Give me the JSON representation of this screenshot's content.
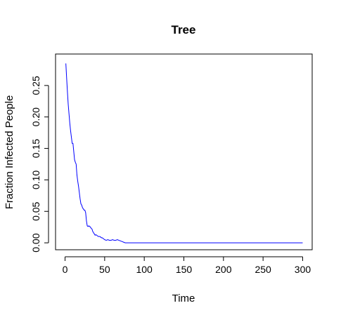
{
  "chart_data": {
    "type": "line",
    "title": "Tree",
    "xlabel": "Time",
    "ylabel": "Fraction Infected People",
    "xlim": [
      -12,
      312
    ],
    "ylim": [
      -0.011,
      0.3
    ],
    "xticks": [
      0,
      50,
      100,
      150,
      200,
      250,
      300
    ],
    "yticks": [
      0.0,
      0.05,
      0.1,
      0.15,
      0.2,
      0.25
    ],
    "xtick_labels": [
      "0",
      "50",
      "100",
      "150",
      "200",
      "250",
      "300"
    ],
    "ytick_labels": [
      "0.00",
      "0.05",
      "0.10",
      "0.15",
      "0.20",
      "0.25"
    ],
    "grid": false,
    "legend": "none",
    "series": [
      {
        "color": "#0000ff",
        "x": [
          1,
          2,
          3,
          4,
          5,
          6,
          7,
          8,
          9,
          10,
          11,
          12,
          13,
          14,
          15,
          16,
          17,
          18,
          19,
          20,
          21,
          22,
          23,
          24,
          25,
          26,
          27,
          28,
          29,
          30,
          31,
          32,
          33,
          34,
          35,
          36,
          37,
          38,
          39,
          40,
          41,
          42,
          43,
          44,
          45,
          46,
          47,
          48,
          49,
          50,
          52,
          54,
          56,
          58,
          60,
          62,
          64,
          66,
          68,
          70,
          72,
          74,
          76,
          80,
          90,
          100,
          150,
          200,
          250,
          300
        ],
        "y": [
          0.285,
          0.262,
          0.24,
          0.22,
          0.205,
          0.19,
          0.178,
          0.168,
          0.158,
          0.158,
          0.145,
          0.132,
          0.128,
          0.125,
          0.108,
          0.098,
          0.09,
          0.08,
          0.07,
          0.062,
          0.06,
          0.056,
          0.054,
          0.052,
          0.052,
          0.048,
          0.035,
          0.027,
          0.026,
          0.027,
          0.026,
          0.025,
          0.023,
          0.022,
          0.018,
          0.016,
          0.014,
          0.012,
          0.013,
          0.012,
          0.011,
          0.01,
          0.01,
          0.01,
          0.009,
          0.008,
          0.008,
          0.007,
          0.006,
          0.005,
          0.004,
          0.005,
          0.004,
          0.004,
          0.005,
          0.004,
          0.004,
          0.005,
          0.004,
          0.003,
          0.002,
          0.001,
          0.0,
          0.0,
          0.0,
          0.0,
          0.0,
          0.0,
          0.0,
          0.0
        ]
      }
    ]
  }
}
